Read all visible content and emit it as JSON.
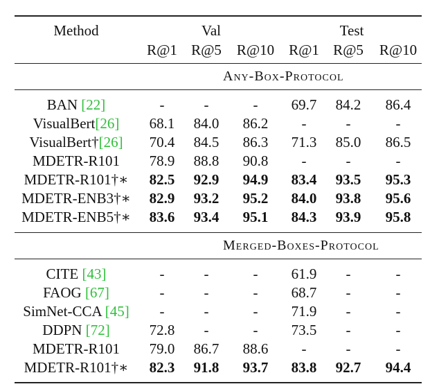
{
  "headers": {
    "method": "Method",
    "val": "Val",
    "test": "Test",
    "metrics": [
      "R@1",
      "R@5",
      "R@10",
      "R@1",
      "R@5",
      "R@10"
    ]
  },
  "sections": [
    {
      "protocol": "Any-Box-Protocol",
      "rows": [
        {
          "name": "BAN ",
          "cite": "[22]",
          "suffix": "",
          "values": [
            "-",
            "-",
            "-",
            "69.7",
            "84.2",
            "86.4"
          ],
          "bold": false
        },
        {
          "name": "VisualBert",
          "cite": "[26]",
          "suffix": "",
          "values": [
            "68.1",
            "84.0",
            "86.2",
            "-",
            "-",
            "-"
          ],
          "bold": false
        },
        {
          "name": "VisualBert†",
          "cite": "[26]",
          "suffix": "",
          "values": [
            "70.4",
            "84.5",
            "86.3",
            "71.3",
            "85.0",
            "86.5"
          ],
          "bold": false
        },
        {
          "name": "MDETR-R101",
          "cite": "",
          "suffix": "",
          "values": [
            "78.9",
            "88.8",
            "90.8",
            "-",
            "-",
            "-"
          ],
          "bold": false
        },
        {
          "name": "MDETR-R101†∗",
          "cite": "",
          "suffix": "",
          "values": [
            "82.5",
            "92.9",
            "94.9",
            "83.4",
            "93.5",
            "95.3"
          ],
          "bold": true
        },
        {
          "name": "MDETR-ENB3†∗",
          "cite": "",
          "suffix": "",
          "values": [
            "82.9",
            "93.2",
            "95.2",
            "84.0",
            "93.8",
            "95.6"
          ],
          "bold": true
        },
        {
          "name": "MDETR-ENB5†∗",
          "cite": "",
          "suffix": "",
          "values": [
            "83.6",
            "93.4",
            "95.1",
            "84.3",
            "93.9",
            "95.8"
          ],
          "bold": true
        }
      ]
    },
    {
      "protocol": "Merged-Boxes-Protocol",
      "rows": [
        {
          "name": "CITE ",
          "cite": "[43]",
          "suffix": "",
          "values": [
            "-",
            "-",
            "-",
            "61.9",
            "-",
            "-"
          ],
          "bold": false
        },
        {
          "name": "FAOG ",
          "cite": "[67]",
          "suffix": "",
          "values": [
            "-",
            "-",
            "-",
            "68.7",
            "-",
            "-"
          ],
          "bold": false
        },
        {
          "name": "SimNet-CCA ",
          "cite": "[45]",
          "suffix": "",
          "values": [
            "-",
            "-",
            "-",
            "71.9",
            "-",
            "-"
          ],
          "bold": false
        },
        {
          "name": "DDPN ",
          "cite": "[72]",
          "suffix": "",
          "values": [
            "72.8",
            "-",
            "-",
            "73.5",
            "-",
            "-"
          ],
          "bold": false
        },
        {
          "name": "MDETR-R101",
          "cite": "",
          "suffix": "",
          "values": [
            "79.0",
            "86.7",
            "88.6",
            "-",
            "-",
            "-"
          ],
          "bold": false
        },
        {
          "name": "MDETR-R101†∗",
          "cite": "",
          "suffix": "",
          "values": [
            "82.3",
            "91.8",
            "93.7",
            "83.8",
            "92.7",
            "94.4"
          ],
          "bold": true
        }
      ]
    }
  ]
}
